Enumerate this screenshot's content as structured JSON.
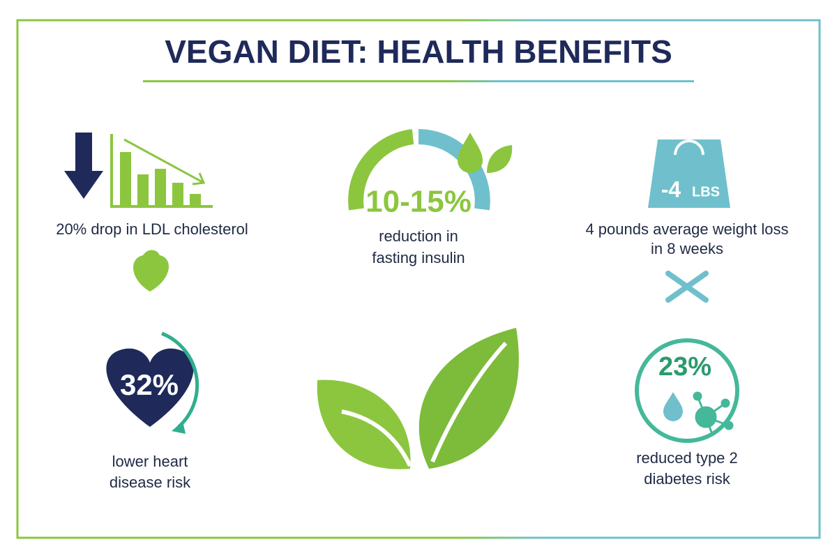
{
  "title": "VEGAN DIET: HEALTH BENEFITS",
  "cholesterol": {
    "caption": "20% drop in LDL cholesterol"
  },
  "insulin": {
    "figure": "10-15%",
    "caption": [
      "reduction in",
      "fasting insulin"
    ]
  },
  "weight": {
    "figure": "-4",
    "unit": "LBS",
    "caption": [
      "4 pounds average weight loss",
      "in 8 weeks"
    ]
  },
  "heart": {
    "figure": "32%",
    "caption": [
      "lower heart",
      "disease risk"
    ]
  },
  "diabetes": {
    "figure": "23%",
    "caption": [
      "reduced type 2",
      "diabetes risk"
    ]
  }
}
